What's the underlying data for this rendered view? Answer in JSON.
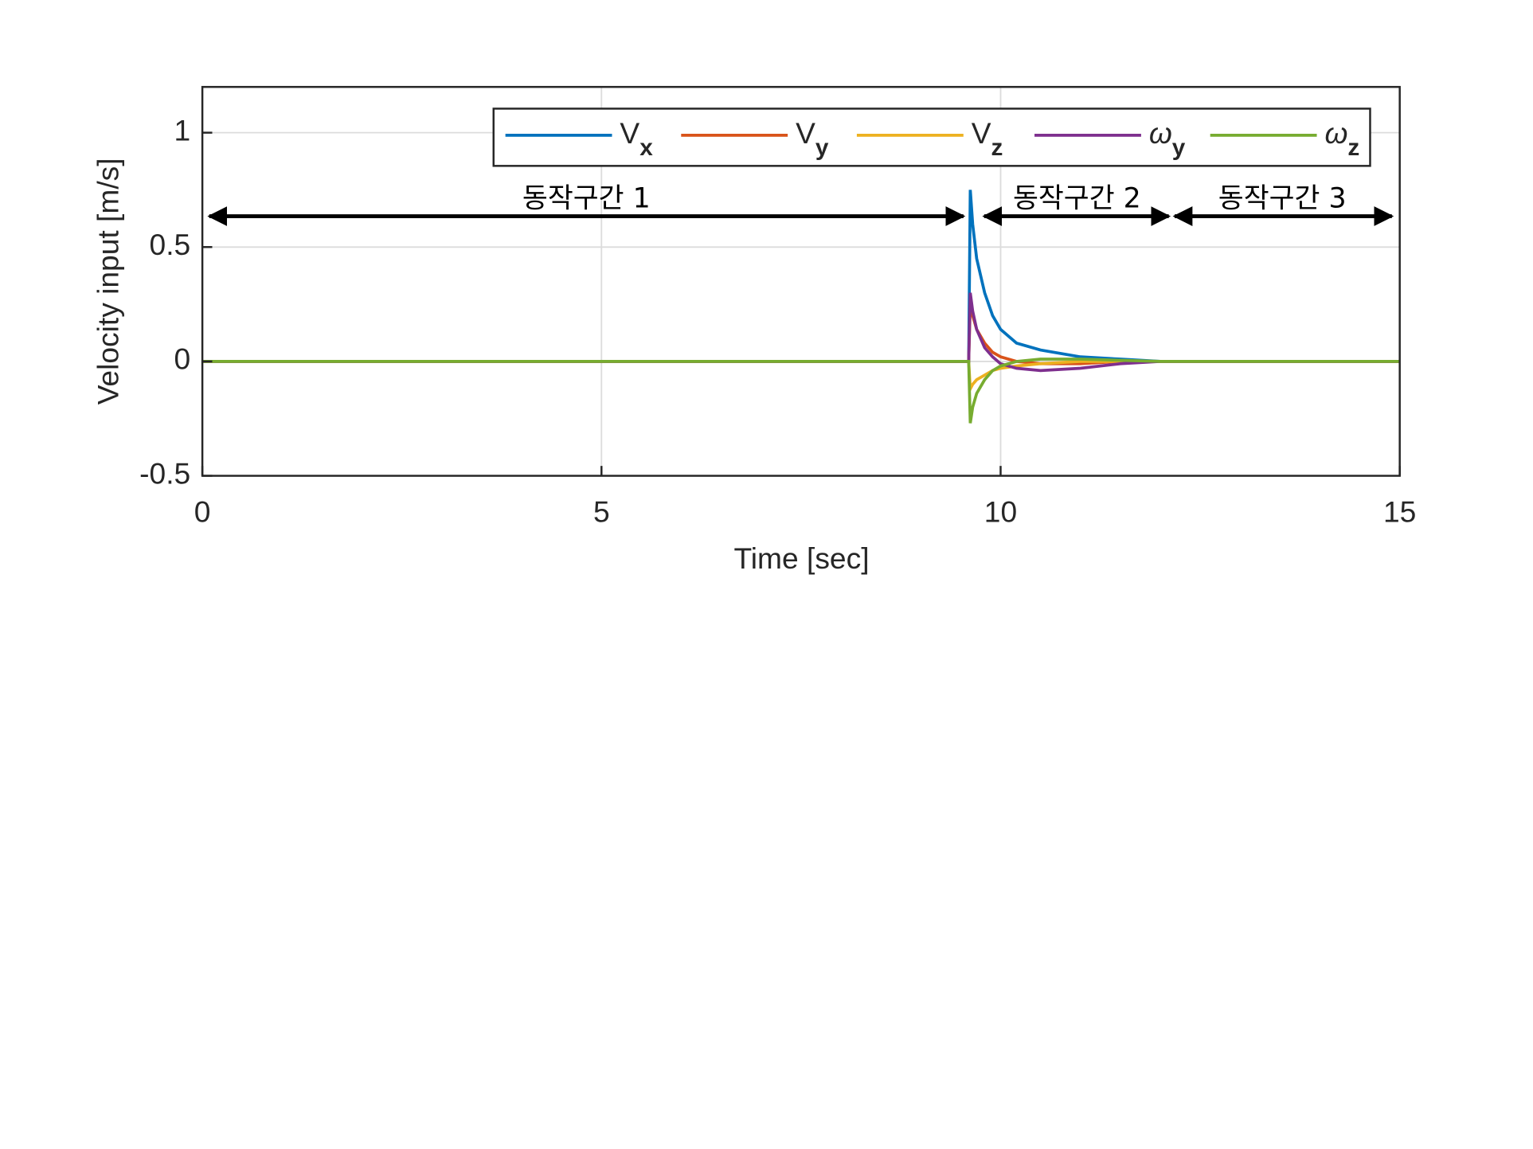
{
  "chart_data": {
    "type": "line",
    "x_label": "Time [sec]",
    "y_label": "Velocity input [m/s]",
    "x": [
      0,
      9.6,
      9.62,
      9.65,
      9.7,
      9.8,
      9.9,
      10.0,
      10.2,
      10.5,
      11,
      11.5,
      12,
      13,
      15
    ],
    "series": [
      {
        "name": "Vx",
        "color": "#0072BD",
        "values": [
          0,
          0,
          0.75,
          0.6,
          0.45,
          0.3,
          0.2,
          0.14,
          0.08,
          0.05,
          0.02,
          0.01,
          0,
          0,
          0
        ]
      },
      {
        "name": "Vy",
        "color": "#D95319",
        "values": [
          0,
          0,
          0.25,
          0.2,
          0.14,
          0.08,
          0.04,
          0.02,
          0,
          -0.01,
          -0.01,
          0,
          0,
          0,
          0
        ]
      },
      {
        "name": "Vz",
        "color": "#EDB120",
        "values": [
          0,
          0,
          -0.12,
          -0.1,
          -0.08,
          -0.06,
          -0.04,
          -0.03,
          -0.02,
          -0.01,
          0,
          0,
          0,
          0,
          0
        ]
      },
      {
        "name": "ωy",
        "color": "#7E2F8E",
        "values": [
          0,
          0,
          0.3,
          0.22,
          0.14,
          0.06,
          0.02,
          -0.01,
          -0.03,
          -0.04,
          -0.03,
          -0.01,
          0,
          0,
          0
        ]
      },
      {
        "name": "ωz",
        "color": "#77AC30",
        "values": [
          0,
          0,
          -0.27,
          -0.2,
          -0.14,
          -0.08,
          -0.04,
          -0.02,
          0,
          0.01,
          0.01,
          0.005,
          0,
          0,
          0
        ]
      }
    ],
    "xlim": [
      0,
      15
    ],
    "xticks": [
      0,
      5,
      10,
      15
    ],
    "ylim": [
      -0.5,
      1.2
    ],
    "yticks": [
      -0.5,
      0,
      0.5,
      1
    ],
    "grid": true,
    "annotations": [
      "동작구간 1",
      "동작구간 2",
      "동작구간 3"
    ]
  }
}
